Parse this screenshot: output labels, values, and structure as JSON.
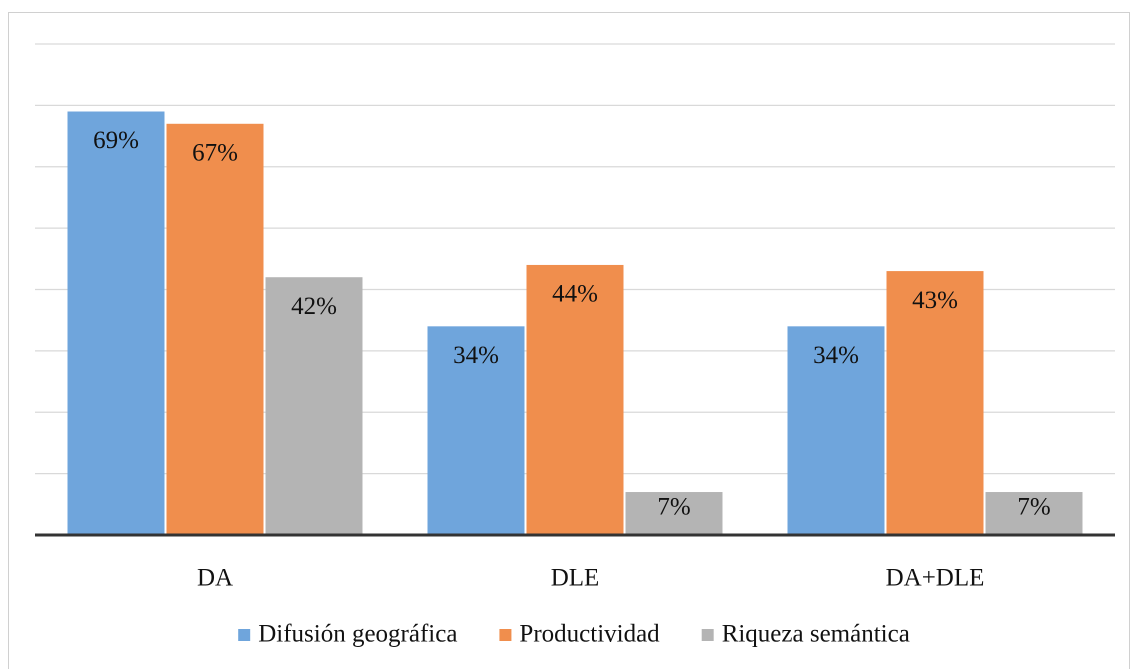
{
  "chart_data": {
    "type": "bar",
    "categories": [
      "DA",
      "DLE",
      "DA+DLE"
    ],
    "series": [
      {
        "name": "Difusión geográfica",
        "color": "#6fa5dc",
        "values": [
          69,
          34,
          34
        ],
        "value_labels": [
          "69%",
          "34%",
          "34%"
        ]
      },
      {
        "name": "Productividad",
        "color": "#f08e4d",
        "values": [
          67,
          44,
          43
        ],
        "value_labels": [
          "67%",
          "44%",
          "43%"
        ]
      },
      {
        "name": "Riqueza semántica",
        "color": "#b4b4b4",
        "values": [
          42,
          7,
          7
        ],
        "value_labels": [
          "42%",
          "7%",
          "7%"
        ]
      }
    ],
    "ylim": [
      0,
      80
    ],
    "yticks": [
      0,
      10,
      20,
      30,
      40,
      50,
      60,
      70,
      80
    ],
    "grid": true,
    "legend": "bottom"
  }
}
